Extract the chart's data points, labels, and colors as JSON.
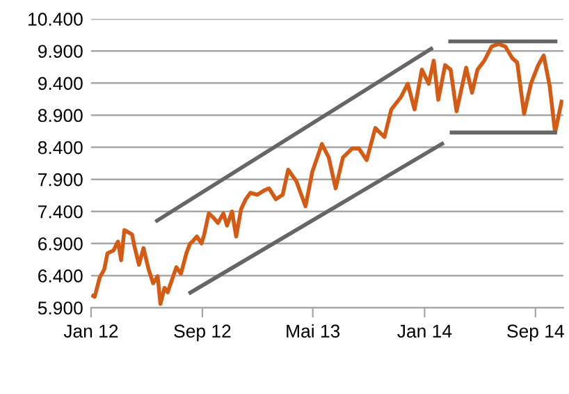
{
  "chart_data": {
    "type": "line",
    "grid": "y",
    "legend": false,
    "xlim": [
      "2012-01-01",
      "2014-11-01"
    ],
    "ylim": [
      5900,
      10400
    ],
    "xticks": [
      {
        "value": "2012-01-01",
        "label": "Jan 12"
      },
      {
        "value": "2012-09-01",
        "label": "Sep 12"
      },
      {
        "value": "2013-05-01",
        "label": "Mai 13"
      },
      {
        "value": "2014-01-01",
        "label": "Jan 14"
      },
      {
        "value": "2014-09-01",
        "label": "Sep 14"
      }
    ],
    "yticks": [
      {
        "value": 5900,
        "label": "5.900"
      },
      {
        "value": 6400,
        "label": "6.400"
      },
      {
        "value": 6900,
        "label": "6.900"
      },
      {
        "value": 7400,
        "label": "7.400"
      },
      {
        "value": 7900,
        "label": "7.900"
      },
      {
        "value": 8400,
        "label": "8.400"
      },
      {
        "value": 8900,
        "label": "8.900"
      },
      {
        "value": 9400,
        "label": "9.400"
      },
      {
        "value": 9900,
        "label": "9.900"
      },
      {
        "value": 10400,
        "label": "10.400"
      }
    ],
    "series": [
      {
        "color": "#d55a14",
        "x": [
          "2012-01-02",
          "2012-01-09",
          "2012-01-20",
          "2012-01-30",
          "2012-02-06",
          "2012-02-19",
          "2012-02-29",
          "2012-03-07",
          "2012-03-14",
          "2012-03-31",
          "2012-04-05",
          "2012-04-15",
          "2012-04-25",
          "2012-05-06",
          "2012-05-16",
          "2012-05-26",
          "2012-06-01",
          "2012-06-10",
          "2012-06-17",
          "2012-06-27",
          "2012-07-06",
          "2012-07-16",
          "2012-07-28",
          "2012-08-05",
          "2012-08-10",
          "2012-08-20",
          "2012-08-30",
          "2012-09-05",
          "2012-09-15",
          "2012-09-27",
          "2012-10-05",
          "2012-10-17",
          "2012-10-25",
          "2012-11-05",
          "2012-11-14",
          "2012-11-25",
          "2012-12-05",
          "2012-12-15",
          "2012-12-30",
          "2013-01-15",
          "2013-01-25",
          "2013-02-09",
          "2013-02-24",
          "2013-03-08",
          "2013-03-26",
          "2013-04-15",
          "2013-04-30",
          "2013-05-21",
          "2013-06-05",
          "2013-06-20",
          "2013-07-06",
          "2013-07-26",
          "2013-08-10",
          "2013-08-27",
          "2013-09-15",
          "2013-10-05",
          "2013-10-20",
          "2013-11-10",
          "2013-11-25",
          "2013-12-10",
          "2013-12-26",
          "2014-01-10",
          "2014-01-21",
          "2014-01-31",
          "2014-02-15",
          "2014-02-27",
          "2014-03-12",
          "2014-04-02",
          "2014-04-15",
          "2014-04-27",
          "2014-05-12",
          "2014-05-28",
          "2014-06-12",
          "2014-06-27",
          "2014-07-12",
          "2014-07-23",
          "2014-08-07",
          "2014-08-22",
          "2014-09-07",
          "2014-09-19",
          "2014-10-02",
          "2014-10-14",
          "2014-10-29"
        ],
        "values": [
          6100,
          6070,
          6370,
          6500,
          6750,
          6790,
          6930,
          6640,
          7110,
          7040,
          6860,
          6570,
          6830,
          6500,
          6280,
          6390,
          5960,
          6210,
          6140,
          6350,
          6530,
          6430,
          6750,
          6900,
          6930,
          7010,
          6900,
          7040,
          7370,
          7290,
          7220,
          7370,
          7180,
          7400,
          7010,
          7440,
          7590,
          7690,
          7660,
          7730,
          7760,
          7590,
          7660,
          8050,
          7870,
          7480,
          8020,
          8450,
          8240,
          7760,
          8240,
          8380,
          8380,
          8200,
          8700,
          8560,
          8990,
          9180,
          9390,
          8990,
          9610,
          9390,
          9750,
          9140,
          9680,
          9610,
          8960,
          9640,
          9250,
          9610,
          9750,
          9970,
          10010,
          9970,
          9790,
          9720,
          8920,
          9390,
          9680,
          9830,
          9360,
          8630,
          9140
        ]
      },
      {
        "color": "#666666",
        "x": [
          "2012-05-21",
          "2014-01-19"
        ],
        "values": [
          7240,
          9950
        ]
      },
      {
        "color": "#666666",
        "x": [
          "2012-08-02",
          "2014-02-12"
        ],
        "values": [
          6120,
          8470
        ]
      },
      {
        "color": "#666666",
        "x": [
          "2014-02-22",
          "2014-10-19"
        ],
        "values": [
          10050,
          10050
        ]
      },
      {
        "color": "#666666",
        "x": [
          "2014-02-25",
          "2014-10-18"
        ],
        "values": [
          8630,
          8630
        ]
      }
    ]
  }
}
